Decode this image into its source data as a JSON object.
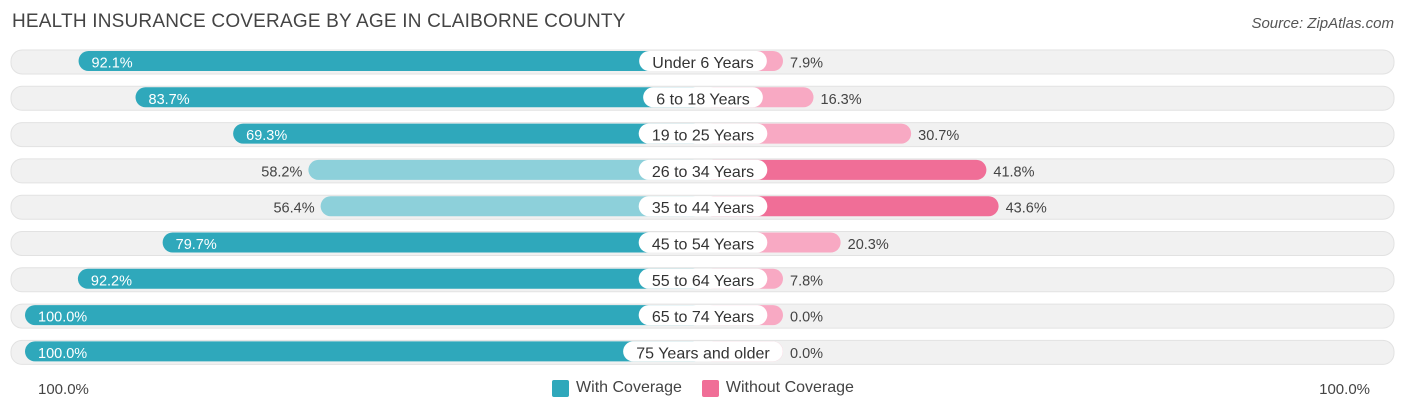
{
  "title": "HEALTH INSURANCE COVERAGE BY AGE IN CLAIBORNE COUNTY",
  "source": "Source: ZipAtlas.com",
  "axis": {
    "left_label": "100.0%",
    "right_label": "100.0%"
  },
  "legend": {
    "with_label": "With Coverage",
    "without_label": "Without Coverage"
  },
  "colors": {
    "with_strong": "#2fa8bb",
    "with_light": "#8dd0da",
    "without_strong": "#f06e97",
    "without_light": "#f8a9c3",
    "track": "#f1f1f1"
  },
  "chart_data": {
    "type": "bar",
    "orientation": "horizontal-diverging",
    "title": "HEALTH INSURANCE COVERAGE BY AGE IN CLAIBORNE COUNTY",
    "categories": [
      "Under 6 Years",
      "6 to 18 Years",
      "19 to 25 Years",
      "26 to 34 Years",
      "35 to 44 Years",
      "45 to 54 Years",
      "55 to 64 Years",
      "65 to 74 Years",
      "75 Years and older"
    ],
    "series": [
      {
        "name": "With Coverage",
        "values": [
          92.1,
          83.7,
          69.3,
          58.2,
          56.4,
          79.7,
          92.2,
          100.0,
          100.0
        ],
        "labels": [
          "92.1%",
          "83.7%",
          "69.3%",
          "58.2%",
          "56.4%",
          "79.7%",
          "92.2%",
          "100.0%",
          "100.0%"
        ]
      },
      {
        "name": "Without Coverage",
        "values": [
          7.9,
          16.3,
          30.7,
          41.8,
          43.6,
          20.3,
          7.8,
          0.0,
          0.0
        ],
        "labels": [
          "7.9%",
          "16.3%",
          "30.7%",
          "41.8%",
          "43.6%",
          "20.3%",
          "7.8%",
          "0.0%",
          "0.0%"
        ]
      }
    ],
    "xlim": [
      0,
      100
    ],
    "legend_position": "bottom-center"
  }
}
